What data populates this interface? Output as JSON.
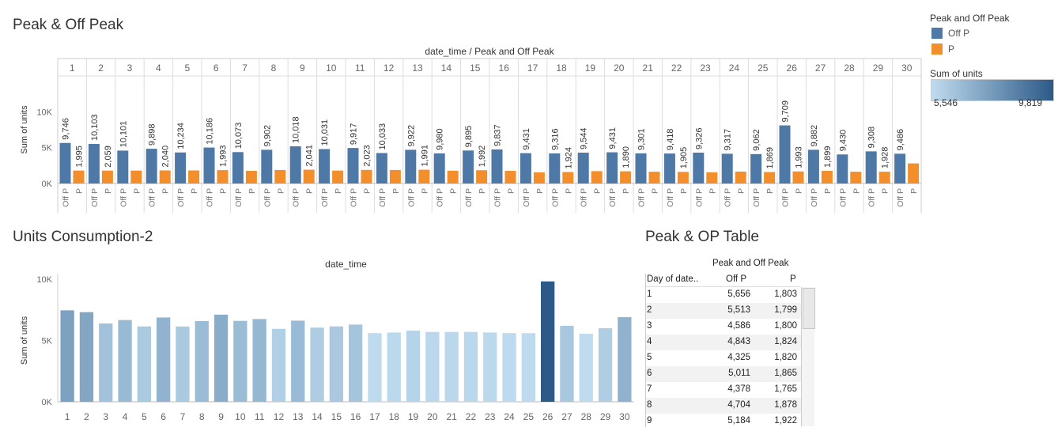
{
  "top": {
    "title": "Peak & Off Peak",
    "header": "date_time / Peak and Off Peak",
    "ylabel": "Sum of units",
    "yticks": [
      "10K",
      "5K",
      "0K"
    ],
    "sub_labels": [
      "Off P",
      "P"
    ]
  },
  "legend": {
    "title": "Peak and Off Peak",
    "items": [
      {
        "label": "Off P",
        "color": "#4e79a7"
      },
      {
        "label": "P",
        "color": "#f28e2b"
      }
    ],
    "gradient_title": "Sum of units",
    "gradient_min": "5,546",
    "gradient_max": "9,819"
  },
  "bottom": {
    "title": "Units Consumption-2",
    "header": "date_time",
    "ylabel": "Sum of units",
    "yticks": [
      "10K",
      "5K",
      "0K"
    ]
  },
  "table": {
    "title": "Peak & OP Table",
    "group_header": "Peak and Off Peak",
    "columns": [
      "Day of date..",
      "Off P",
      "P"
    ],
    "rows": [
      [
        "1",
        "5,656",
        "1,803"
      ],
      [
        "2",
        "5,513",
        "1,799"
      ],
      [
        "3",
        "4,586",
        "1,800"
      ],
      [
        "4",
        "4,843",
        "1,824"
      ],
      [
        "5",
        "4,325",
        "1,820"
      ],
      [
        "6",
        "5,011",
        "1,865"
      ],
      [
        "7",
        "4,378",
        "1,765"
      ],
      [
        "8",
        "4,704",
        "1,878"
      ],
      [
        "9",
        "5,184",
        "1,922"
      ]
    ]
  },
  "chart_data": [
    {
      "type": "bar",
      "title": "Peak & Off Peak",
      "xlabel": "date_time / Peak and Off Peak",
      "ylabel": "Sum of units",
      "ylim": [
        0,
        15000
      ],
      "categories": [
        "1",
        "2",
        "3",
        "4",
        "5",
        "6",
        "7",
        "8",
        "9",
        "10",
        "11",
        "12",
        "13",
        "14",
        "15",
        "16",
        "17",
        "18",
        "19",
        "20",
        "21",
        "22",
        "23",
        "24",
        "25",
        "26",
        "27",
        "28",
        "29",
        "30"
      ],
      "series": [
        {
          "name": "Off P",
          "values": [
            5656,
            5513,
            4586,
            4843,
            4325,
            5011,
            4378,
            4704,
            5184,
            4800,
            4950,
            4250,
            4700,
            4200,
            4600,
            4750,
            4230,
            4200,
            4300,
            4350,
            4200,
            4180,
            4300,
            4150,
            4100,
            8100,
            4700,
            4050,
            4480,
            4150
          ]
        },
        {
          "name": "P",
          "values": [
            1803,
            1799,
            1800,
            1824,
            1820,
            1865,
            1765,
            1878,
            1922,
            1800,
            1900,
            1880,
            1920,
            1780,
            1850,
            1760,
            1560,
            1600,
            1720,
            1700,
            1640,
            1620,
            1560,
            1660,
            1600,
            1680,
            1760,
            1640,
            1640,
            2800
          ]
        }
      ],
      "data_labels_off_p": [
        "9,746",
        "10,103",
        "10,101",
        "9,898",
        "10,234",
        "10,186",
        "10,073",
        "9,902",
        "10,018",
        "10,031",
        "9,917",
        "10,033",
        "9,922",
        "9,980",
        "9,895",
        "9,837",
        "9,431",
        "9,316",
        "9,544",
        "9,431",
        "9,301",
        "9,418",
        "9,326",
        "9,317",
        "9,062",
        "9,709",
        "9,882",
        "9,430",
        "9,308",
        "9,486"
      ],
      "data_labels_p": [
        "1,995",
        "2,059",
        "",
        "2,040",
        "",
        "1,993",
        "",
        "",
        "2,041",
        "",
        "2,023",
        "",
        "1,991",
        "",
        "1,992",
        "",
        "",
        "1,924",
        "",
        "1,890",
        "",
        "1,905",
        "",
        "",
        "1,869",
        "1,993",
        "1,899",
        "",
        "1,928",
        ""
      ]
    },
    {
      "type": "bar",
      "title": "Units Consumption-2",
      "xlabel": "date_time",
      "ylabel": "Sum of units",
      "ylim": [
        0,
        10000
      ],
      "color_range": [
        5546,
        9819
      ],
      "categories": [
        "1",
        "2",
        "3",
        "4",
        "5",
        "6",
        "7",
        "8",
        "9",
        "10",
        "11",
        "12",
        "13",
        "14",
        "15",
        "16",
        "17",
        "18",
        "19",
        "20",
        "21",
        "22",
        "23",
        "24",
        "25",
        "26",
        "27",
        "28",
        "29",
        "30"
      ],
      "values": [
        7459,
        7312,
        6386,
        6667,
        6145,
        6876,
        6143,
        6582,
        7106,
        6600,
        6750,
        5950,
        6620,
        6050,
        6150,
        6300,
        5600,
        5650,
        5800,
        5700,
        5700,
        5700,
        5650,
        5600,
        5600,
        9819,
        6200,
        5546,
        6000,
        6900
      ]
    }
  ]
}
